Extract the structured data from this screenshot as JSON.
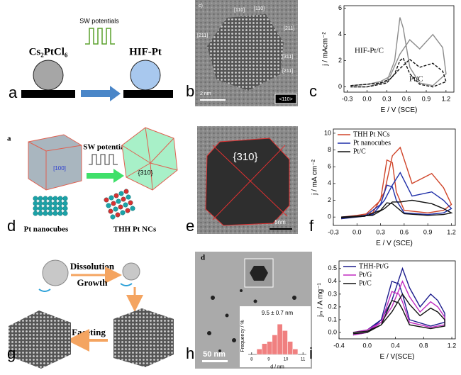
{
  "panel_labels": [
    "a",
    "b",
    "c",
    "d",
    "e",
    "f",
    "g",
    "h",
    "i"
  ],
  "panels": {
    "a": {
      "precursor": "Cs₂PtCl₆",
      "process": "SW potentials",
      "product": "HIF-Pt"
    },
    "b": {
      "corner": "c)",
      "indices": [
        "[110]",
        "[110]",
        "[211]",
        "[211]",
        "[311]",
        "[211]"
      ],
      "scale_bar": "2 nm",
      "zone_axis": "<110>"
    },
    "d": {
      "corner": "a",
      "process": "SW potentials",
      "facet_cube": "[100]",
      "facet_thh": "{310}",
      "left_caption": "Pt nanocubes",
      "right_caption": "THH Pt NCs"
    },
    "e": {
      "facet": "{310}",
      "scale_bar": "5nm"
    },
    "g": {
      "steps": [
        "Dissolution",
        "Growth",
        "Faceting"
      ]
    },
    "h": {
      "corner": "d",
      "scale_bar": "50 nm"
    }
  },
  "chart_data": [
    {
      "type": "line",
      "xlabel": "E / V (SCE)",
      "ylabel": "j / mAcm⁻²",
      "legend": false,
      "xlim": [
        -0.35,
        1.32
      ],
      "ylim": [
        -0.4,
        6.2
      ],
      "xticks": [
        -0.3,
        {
          "value": 0,
          "label": "0.0"
        },
        0.3,
        0.6,
        0.9,
        1.2
      ],
      "yticks": [
        0,
        2,
        4,
        6
      ],
      "x": [
        -0.25,
        0,
        0.2,
        0.35,
        0.5,
        0.65,
        0.8,
        1.0,
        1.15,
        1.2,
        1.0,
        0.8,
        0.65,
        0.55,
        0.5,
        0.42,
        0.3,
        0,
        -0.25
      ],
      "series": [
        {
          "name": "HIF-Pt/C",
          "color": "#8c8c8c",
          "dashed": false,
          "values": [
            0.1,
            0.2,
            0.4,
            0.8,
            2.5,
            3.6,
            2.9,
            4.0,
            3.0,
            1.0,
            0.1,
            0.3,
            1.5,
            4.5,
            5.3,
            2.0,
            0.4,
            0.0,
            0.0
          ]
        },
        {
          "name": "Pt/C",
          "color": "#111111",
          "dashed": true,
          "values": [
            0.1,
            0.2,
            0.3,
            0.6,
            1.4,
            2.1,
            1.5,
            1.8,
            1.2,
            0.4,
            0.0,
            0.2,
            1.0,
            2.2,
            2.0,
            1.0,
            0.3,
            0.0,
            0.0
          ]
        }
      ]
    },
    {
      "type": "line",
      "xlabel": "E / V (SCE)",
      "ylabel": "j / mA cm⁻²",
      "legend": "upper left",
      "xlim": [
        -0.3,
        1.25
      ],
      "ylim": [
        -1,
        10.5
      ],
      "xticks": [
        -0.3,
        {
          "value": 0,
          "label": "0.0"
        },
        0.3,
        0.6,
        0.9,
        1.2
      ],
      "yticks": [
        0,
        2,
        4,
        6,
        8,
        10
      ],
      "x": [
        -0.2,
        0,
        0.2,
        0.35,
        0.45,
        0.55,
        0.7,
        0.95,
        1.1,
        1.2,
        1.1,
        0.9,
        0.6,
        0.5,
        0.45,
        0.38,
        0.3,
        0.1,
        -0.2
      ],
      "series": [
        {
          "name": "THH Pt NCs",
          "color": "#d0452a",
          "values": [
            0,
            0.2,
            0.5,
            3,
            7.3,
            8.3,
            4,
            5.2,
            3.5,
            1.5,
            0.8,
            0.5,
            0.8,
            3,
            6.5,
            6.8,
            2,
            0.2,
            -0.2
          ]
        },
        {
          "name": "Pt nanocubes",
          "color": "#1f2fa8",
          "values": [
            0,
            0.1,
            0.3,
            2,
            3.8,
            5.3,
            2.5,
            3.0,
            2,
            1.0,
            0.5,
            0.3,
            0.5,
            2,
            3.6,
            3.8,
            1.5,
            0.1,
            -0.2
          ]
        },
        {
          "name": "Pt/C",
          "color": "#111111",
          "values": [
            0,
            0.1,
            0.2,
            1,
            1.8,
            1.8,
            2.0,
            1.6,
            1,
            0.5,
            0.3,
            0.2,
            0.4,
            1.2,
            1.6,
            1.7,
            0.8,
            0.1,
            -0.1
          ]
        }
      ]
    },
    {
      "type": "line",
      "xlabel": "E / V(SCE)",
      "ylabel": "jₘ / A mg⁻¹",
      "legend": "upper left",
      "xlim": [
        -0.4,
        1.25
      ],
      "ylim": [
        -0.05,
        0.56
      ],
      "xticks": [
        -0.4,
        {
          "value": 0,
          "label": "0.0"
        },
        0.4,
        0.8,
        1.2
      ],
      "yticks": [
        {
          "value": 0,
          "label": "0.0"
        },
        0.1,
        0.2,
        0.3,
        0.4,
        0.5
      ],
      "x": [
        -0.2,
        0,
        0.2,
        0.35,
        0.5,
        0.6,
        0.75,
        0.9,
        1.0,
        1.1,
        1.1,
        0.9,
        0.6,
        0.5,
        0.45,
        0.35,
        0.2,
        0,
        -0.2
      ],
      "series": [
        {
          "name": "THH-Pt/G",
          "color": "#1c1c8c",
          "values": [
            0,
            0.02,
            0.1,
            0.25,
            0.5,
            0.35,
            0.2,
            0.3,
            0.25,
            0.15,
            0.08,
            0.05,
            0.1,
            0.3,
            0.38,
            0.4,
            0.1,
            0,
            -0.02
          ]
        },
        {
          "name": "Pt/G",
          "color": "#c02cc0",
          "values": [
            0,
            0.02,
            0.08,
            0.2,
            0.4,
            0.28,
            0.16,
            0.24,
            0.2,
            0.12,
            0.06,
            0.04,
            0.08,
            0.24,
            0.3,
            0.32,
            0.08,
            0,
            -0.02
          ]
        },
        {
          "name": "Pt/C",
          "color": "#111111",
          "values": [
            0,
            0.01,
            0.06,
            0.16,
            0.3,
            0.22,
            0.13,
            0.19,
            0.16,
            0.1,
            0.05,
            0.03,
            0.06,
            0.18,
            0.23,
            0.25,
            0.06,
            0,
            -0.01
          ]
        }
      ]
    },
    {
      "type": "histogram",
      "annotation": "9.5 ± 0.7 nm",
      "xlabel": "d / nm",
      "ylabel": "Frequency / %",
      "xlim": [
        7.8,
        11.2
      ],
      "ylim": [
        0,
        34
      ],
      "xticks": [
        8,
        9,
        10,
        11
      ],
      "color": "#f08080",
      "bins": [
        8.3,
        8.6,
        8.9,
        9.2,
        9.5,
        9.8,
        10.1,
        10.4,
        10.7
      ],
      "values": [
        5,
        10,
        12,
        18,
        28,
        22,
        12,
        5
      ]
    }
  ]
}
